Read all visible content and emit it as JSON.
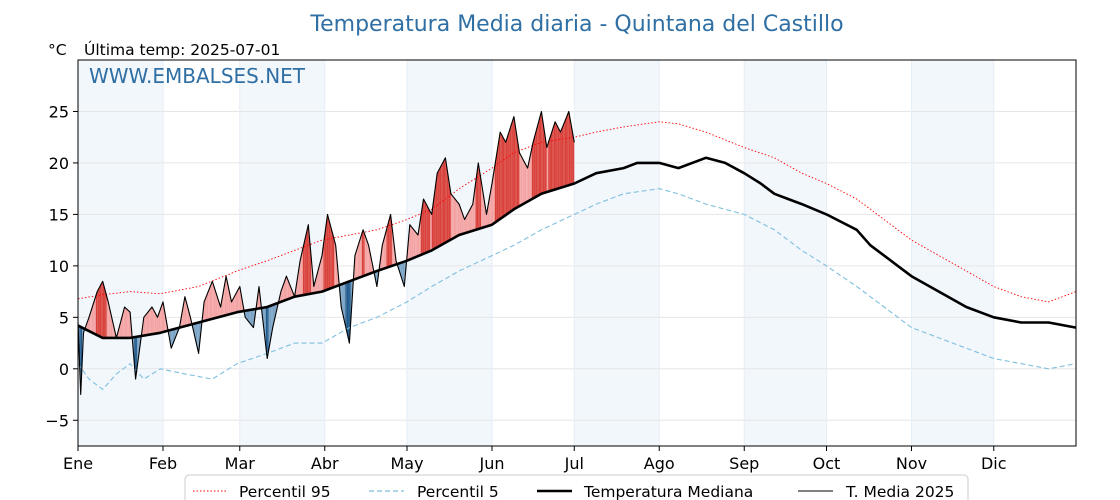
{
  "chart_data": {
    "type": "line",
    "title": "Temperatura Media diaria - Quintana del Castillo",
    "ylabel": "°C",
    "last_temp_label": "Última temp: 2025-07-01",
    "watermark": "WWW.EMBALSES.NET",
    "xlim_days": [
      1,
      365
    ],
    "ylim": [
      -7.5,
      30
    ],
    "yticks": [
      -5,
      0,
      5,
      10,
      15,
      20,
      25
    ],
    "grid": true,
    "legend_position": "bottom-center",
    "months": [
      "Ene",
      "Feb",
      "Mar",
      "Abr",
      "May",
      "Jun",
      "Jul",
      "Ago",
      "Sep",
      "Oct",
      "Nov",
      "Dic"
    ],
    "month_start_days": [
      1,
      32,
      60,
      91,
      121,
      152,
      182,
      213,
      244,
      274,
      305,
      335
    ],
    "month_shading": "alternate-light-blue",
    "anomaly_colors": {
      "above": "#f4a3a3",
      "above_strong": "#d9413b",
      "below": "#7aa3c6",
      "below_strong": "#1f5a8c"
    },
    "series": [
      {
        "name": "Percentil 95",
        "style": "dotted",
        "color": "#ff0000",
        "x": [
          1,
          10,
          20,
          31,
          45,
          59,
          70,
          80,
          90,
          100,
          110,
          121,
          130,
          140,
          152,
          160,
          170,
          182,
          190,
          200,
          213,
          220,
          230,
          244,
          255,
          265,
          274,
          285,
          295,
          305,
          315,
          325,
          335,
          345,
          355,
          365
        ],
        "values": [
          6.8,
          7.2,
          7.5,
          7.3,
          8.0,
          9.5,
          10.5,
          11.5,
          12.5,
          13.0,
          13.5,
          14.5,
          15.5,
          17.5,
          19.5,
          21.0,
          22.0,
          22.5,
          23.0,
          23.5,
          24.0,
          23.8,
          23.0,
          21.5,
          20.5,
          19.0,
          18.0,
          16.5,
          14.5,
          12.5,
          11.0,
          9.5,
          8.0,
          7.0,
          6.5,
          7.5
        ]
      },
      {
        "name": "Percentil 5",
        "style": "dashed",
        "color": "#7fbfdf",
        "x": [
          1,
          5,
          10,
          15,
          20,
          25,
          31,
          40,
          50,
          59,
          70,
          80,
          90,
          100,
          110,
          121,
          130,
          140,
          152,
          160,
          170,
          182,
          190,
          200,
          213,
          220,
          230,
          244,
          255,
          265,
          274,
          285,
          295,
          305,
          315,
          325,
          335,
          345,
          355,
          365
        ],
        "values": [
          0.5,
          -1.0,
          -2.0,
          -0.5,
          0.5,
          -1.0,
          0.0,
          -0.5,
          -1.0,
          0.5,
          1.5,
          2.5,
          2.5,
          4.0,
          5.0,
          6.5,
          8.0,
          9.5,
          11.0,
          12.0,
          13.5,
          15.0,
          16.0,
          17.0,
          17.5,
          17.0,
          16.0,
          15.0,
          13.5,
          11.5,
          10.0,
          8.0,
          6.0,
          4.0,
          3.0,
          2.0,
          1.0,
          0.5,
          0.0,
          0.5
        ]
      },
      {
        "name": "Temperatura Mediana",
        "style": "solid-thick",
        "color": "#000000",
        "x": [
          1,
          10,
          20,
          31,
          45,
          59,
          70,
          80,
          90,
          100,
          110,
          121,
          130,
          140,
          152,
          160,
          170,
          182,
          190,
          200,
          205,
          213,
          220,
          230,
          237,
          244,
          250,
          255,
          260,
          265,
          274,
          285,
          290,
          295,
          300,
          305,
          315,
          325,
          335,
          345,
          355,
          365
        ],
        "values": [
          4.2,
          3.0,
          3.0,
          3.5,
          4.5,
          5.5,
          6.0,
          7.0,
          7.5,
          8.5,
          9.5,
          10.5,
          11.5,
          13.0,
          14.0,
          15.5,
          17.0,
          18.0,
          19.0,
          19.5,
          20.0,
          20.0,
          19.5,
          20.5,
          20.0,
          19.0,
          18.0,
          17.0,
          16.5,
          16.0,
          15.0,
          13.5,
          12.0,
          11.0,
          10.0,
          9.0,
          7.5,
          6.0,
          5.0,
          4.5,
          4.5,
          4.0
        ]
      },
      {
        "name": "T. Media 2025",
        "style": "solid-thin",
        "color": "#000000",
        "x": [
          1,
          2,
          3,
          5,
          8,
          10,
          12,
          15,
          18,
          20,
          22,
          25,
          28,
          30,
          32,
          35,
          38,
          40,
          42,
          45,
          47,
          50,
          53,
          55,
          57,
          60,
          62,
          65,
          67,
          70,
          72,
          75,
          77,
          80,
          82,
          85,
          87,
          90,
          92,
          95,
          97,
          100,
          102,
          105,
          107,
          110,
          112,
          115,
          117,
          120,
          122,
          125,
          127,
          130,
          132,
          135,
          137,
          140,
          142,
          145,
          147,
          150,
          152,
          155,
          157,
          160,
          162,
          165,
          167,
          170,
          172,
          175,
          177,
          180,
          182
        ],
        "values": [
          4.5,
          -2.5,
          3.5,
          5.0,
          7.5,
          8.5,
          6.5,
          3.0,
          6.0,
          5.5,
          -1.0,
          5.0,
          6.0,
          5.0,
          6.5,
          2.0,
          4.0,
          7.0,
          5.0,
          1.5,
          6.5,
          8.5,
          6.0,
          9.0,
          6.5,
          8.0,
          5.0,
          4.0,
          8.0,
          1.0,
          4.0,
          7.5,
          9.0,
          7.0,
          10.5,
          14.0,
          8.0,
          11.0,
          15.0,
          12.0,
          6.0,
          2.5,
          11.0,
          13.5,
          12.0,
          8.0,
          12.0,
          15.0,
          10.5,
          8.0,
          14.0,
          13.0,
          16.5,
          15.0,
          19.0,
          20.5,
          17.0,
          16.0,
          14.5,
          16.0,
          20.0,
          15.0,
          18.0,
          23.0,
          22.0,
          24.5,
          21.0,
          19.5,
          22.0,
          25.0,
          21.5,
          24.0,
          23.0,
          25.0,
          22.0
        ]
      }
    ]
  }
}
